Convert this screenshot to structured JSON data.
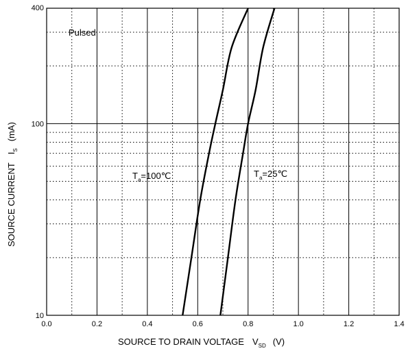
{
  "chart_data": {
    "type": "line",
    "xlabel": "SOURCE TO DRAIN VOLTAGE",
    "xlabel_symbol": "V",
    "xlabel_subscript": "SD",
    "xlabel_unit": "(V)",
    "ylabel": "SOURCE CURRENT",
    "ylabel_symbol": "I",
    "ylabel_subscript": "S",
    "ylabel_unit": "(mA)",
    "xlim": [
      0.0,
      1.4
    ],
    "ylim": [
      10,
      400
    ],
    "yscale": "log",
    "x_ticks": [
      "0.0",
      "0.2",
      "0.4",
      "0.6",
      "0.8",
      "1.0",
      "1.2",
      "1.4"
    ],
    "y_ticks": [
      "10",
      "100",
      "400"
    ],
    "grid": true,
    "annotations": {
      "pulsed": "Pulsed",
      "ta100_T": "T",
      "ta100_sub": "a",
      "ta100_rest": "=100℃",
      "ta25_T": "T",
      "ta25_sub": "a",
      "ta25_rest": "=25℃"
    },
    "series": [
      {
        "points": [
          [
            0.54,
            10
          ],
          [
            0.575,
            20
          ],
          [
            0.61,
            40
          ],
          [
            0.645,
            70
          ],
          [
            0.67,
            100
          ],
          [
            0.7,
            150
          ],
          [
            0.735,
            250
          ],
          [
            0.8,
            400
          ]
        ]
      },
      {
        "points": [
          [
            0.69,
            10
          ],
          [
            0.72,
            20
          ],
          [
            0.75,
            40
          ],
          [
            0.78,
            70
          ],
          [
            0.8,
            100
          ],
          [
            0.83,
            150
          ],
          [
            0.86,
            250
          ],
          [
            0.905,
            400
          ]
        ]
      }
    ]
  }
}
